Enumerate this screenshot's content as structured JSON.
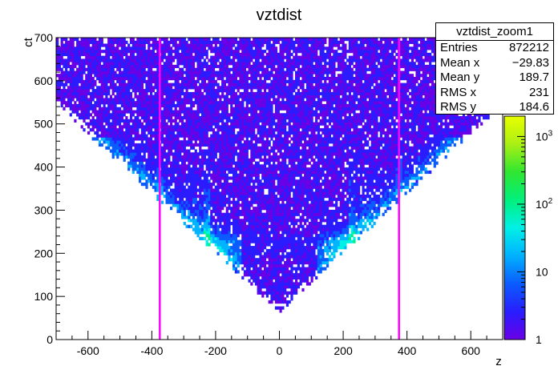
{
  "chart_data": {
    "type": "heatmap",
    "title": "vztdist",
    "xlabel": "z",
    "ylabel": "ct",
    "xlim": [
      -700,
      700
    ],
    "ylim": [
      0,
      700
    ],
    "x_ticks": [
      "-600",
      "-400",
      "-200",
      "0",
      "200",
      "400",
      "600"
    ],
    "x_tick_values": [
      -600,
      -400,
      -200,
      0,
      200,
      400,
      600
    ],
    "y_ticks": [
      "0",
      "100",
      "200",
      "300",
      "400",
      "500",
      "600",
      "700"
    ],
    "y_tick_values": [
      0,
      100,
      200,
      300,
      400,
      500,
      600,
      700
    ],
    "colorbar": {
      "scale": "log",
      "range": [
        1,
        2000
      ],
      "ticks": [
        {
          "label": "1",
          "value": 1
        },
        {
          "label": "10",
          "value": 10
        },
        {
          "label": "10",
          "sup": "2",
          "value": 100
        },
        {
          "label": "10",
          "sup": "3",
          "value": 1000
        }
      ]
    },
    "markers": {
      "color": "#ff00ff",
      "x": [
        -375,
        375
      ]
    },
    "stats": {
      "title": "vztdist_zoom1",
      "rows": [
        {
          "label": "Entries",
          "value": "872212"
        },
        {
          "label": "Mean x",
          "value": "−29.83"
        },
        {
          "label": "Mean y",
          "value": "189.7"
        },
        {
          "label": "RMS x",
          "value": "231"
        },
        {
          "label": "RMS y",
          "value": "184.6"
        }
      ]
    }
  }
}
